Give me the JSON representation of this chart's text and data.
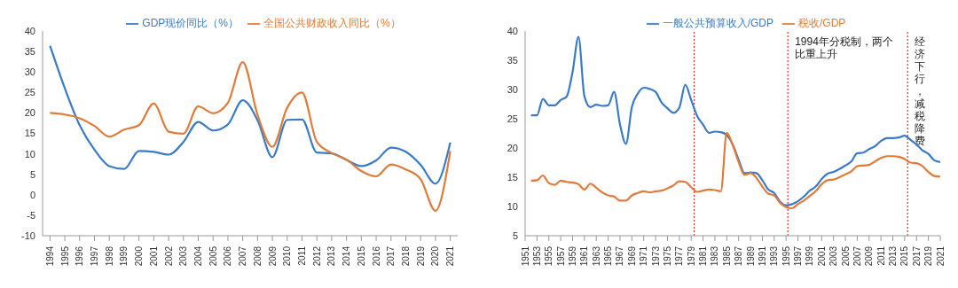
{
  "chart_data": [
    {
      "type": "line",
      "categories": [
        "1994",
        "1995",
        "1996",
        "1997",
        "1998",
        "1999",
        "2000",
        "2001",
        "2002",
        "2003",
        "2004",
        "2005",
        "2006",
        "2007",
        "2008",
        "2009",
        "2010",
        "2011",
        "2012",
        "2013",
        "2014",
        "2015",
        "2016",
        "2017",
        "2018",
        "2019",
        "2020",
        "2021"
      ],
      "series": [
        {
          "name": "GDP现价同比（%）",
          "color": "#3a7bc8",
          "values": [
            36.4,
            26,
            17,
            11,
            7,
            6.3,
            10.7,
            10.5,
            9.8,
            12.9,
            17.8,
            15.7,
            17.2,
            23.1,
            18.2,
            9.2,
            18.3,
            18.4,
            10.3,
            10.1,
            8.5,
            7.0,
            8.4,
            11.5,
            10.5,
            7.3,
            2.7,
            12.8
          ]
        },
        {
          "name": "全国公共财政收入同比（%）",
          "color": "#e07b39",
          "values": [
            20.0,
            19.6,
            18.7,
            16.8,
            14.2,
            15.9,
            17.0,
            22.3,
            15.4,
            14.9,
            21.6,
            19.9,
            22.5,
            32.4,
            19.5,
            11.7,
            21.3,
            25.0,
            12.9,
            10.2,
            8.6,
            5.8,
            4.5,
            7.4,
            6.2,
            3.8,
            -3.9,
            10.7
          ]
        }
      ],
      "ylim": [
        -10,
        40
      ],
      "yticks": [
        -10,
        -5,
        0,
        5,
        10,
        15,
        20,
        25,
        30,
        35,
        40
      ],
      "grid": false,
      "legend": "top",
      "marker": "none"
    },
    {
      "type": "line",
      "x": [
        1952,
        1953,
        1954,
        1955,
        1956,
        1957,
        1958,
        1959,
        1960,
        1961,
        1962,
        1963,
        1964,
        1965,
        1966,
        1967,
        1968,
        1969,
        1970,
        1971,
        1972,
        1973,
        1974,
        1975,
        1976,
        1977,
        1978,
        1979,
        1980,
        1981,
        1982,
        1983,
        1984,
        1985,
        1986,
        1987,
        1988,
        1989,
        1990,
        1991,
        1992,
        1993,
        1994,
        1995,
        1996,
        1997,
        1998,
        1999,
        2000,
        2001,
        2002,
        2003,
        2004,
        2005,
        2006,
        2007,
        2008,
        2009,
        2010,
        2011,
        2012,
        2013,
        2014,
        2015,
        2016,
        2017,
        2018,
        2019,
        2020,
        2021
      ],
      "series": [
        {
          "name": "一般公共预算收入/GDP",
          "color": "#3a7bc8",
          "values": [
            25.6,
            25.6,
            28.4,
            27.3,
            27.3,
            28.2,
            28.8,
            33,
            39,
            28.8,
            27,
            27.4,
            27.2,
            27.3,
            29.6,
            24,
            20.7,
            27,
            29.3,
            30.3,
            30.1,
            29.6,
            27.8,
            26.8,
            26,
            26.9,
            30.8,
            28.2,
            25.5,
            24,
            22.6,
            22.8,
            22.7,
            22.2,
            20.6,
            18,
            15.7,
            15.8,
            15.7,
            14.5,
            12.9,
            12.3,
            10.8,
            10.2,
            10.4,
            10.9,
            11.7,
            12.7,
            13.4,
            14.7,
            15.6,
            15.9,
            16.4,
            17.0,
            17.7,
            19.1,
            19.2,
            19.8,
            20.3,
            21.2,
            21.7,
            21.7,
            21.8,
            22.1,
            21.4,
            20.6,
            19.6,
            19.0,
            17.9,
            17.6
          ]
        },
        {
          "name": "税收/GDP",
          "color": "#e07b39",
          "values": [
            14.4,
            14.5,
            15.3,
            14.0,
            13.7,
            14.4,
            14.2,
            14.1,
            13.8,
            12.9,
            13.9,
            13.2,
            12.4,
            11.9,
            11.7,
            11.0,
            11.0,
            11.9,
            12.3,
            12.6,
            12.4,
            12.6,
            12.7,
            13.1,
            13.6,
            14.3,
            14.2,
            13.3,
            12.5,
            12.7,
            12.9,
            12.8,
            12.6,
            22.6,
            20.5,
            17.6,
            15.4,
            15.7,
            14.9,
            13.4,
            12.2,
            11.9,
            10.6,
            9.9,
            9.7,
            10.4,
            11.0,
            11.8,
            12.6,
            13.8,
            14.5,
            14.6,
            15.0,
            15.5,
            16.0,
            16.9,
            17.0,
            17.1,
            17.7,
            18.3,
            18.6,
            18.6,
            18.5,
            18.1,
            17.5,
            17.4,
            16.9,
            15.9,
            15.2,
            15.1
          ]
        }
      ],
      "xlim": [
        1951,
        2021
      ],
      "xticks": [
        1951,
        1953,
        1955,
        1957,
        1959,
        1961,
        1963,
        1965,
        1967,
        1969,
        1971,
        1973,
        1975,
        1977,
        1979,
        1981,
        1983,
        1985,
        1987,
        1989,
        1991,
        1993,
        1995,
        1997,
        1999,
        2001,
        2003,
        2005,
        2007,
        2009,
        2011,
        2013,
        2015,
        2017,
        2019,
        2021
      ],
      "ylim": [
        5,
        40
      ],
      "yticks": [
        5,
        10,
        15,
        20,
        25,
        30,
        35,
        40
      ],
      "grid": false,
      "legend": "top",
      "marker": "none",
      "ref_lines": [
        {
          "axis": "x",
          "value": 1979.5,
          "color": "#e03030",
          "line_style": "dotted"
        },
        {
          "axis": "x",
          "value": 1995.3,
          "label": "1994年分税制，两个比重上升",
          "color": "#e03030",
          "line_style": "dotted"
        },
        {
          "axis": "x",
          "value": 2015.5,
          "label": "经济下行，减税降费",
          "color": "#e03030",
          "line_style": "dotted"
        }
      ]
    }
  ]
}
